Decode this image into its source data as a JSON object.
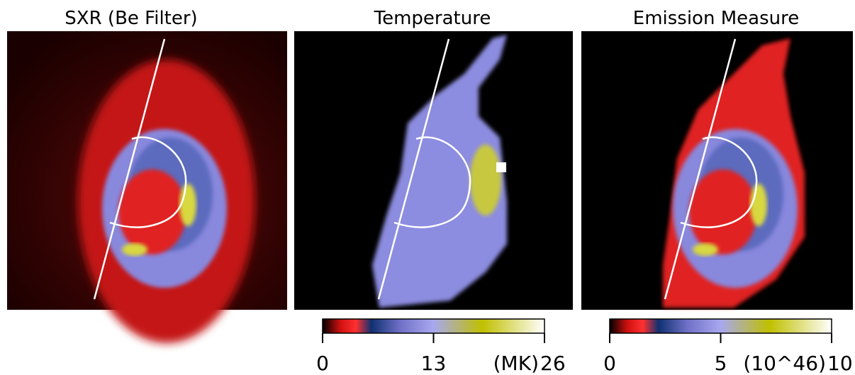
{
  "panels": [
    {
      "title": "SXR (Be Filter)"
    },
    {
      "title": "Temperature",
      "colorbar": {
        "range": [
          0,
          26
        ],
        "ticks": [
          0,
          13,
          26
        ],
        "unit": "(MK)"
      }
    },
    {
      "title": "Emission Measure",
      "colorbar": {
        "range": [
          0,
          10
        ],
        "ticks": [
          0,
          5,
          10
        ],
        "unit": "(10^46)"
      }
    }
  ]
}
